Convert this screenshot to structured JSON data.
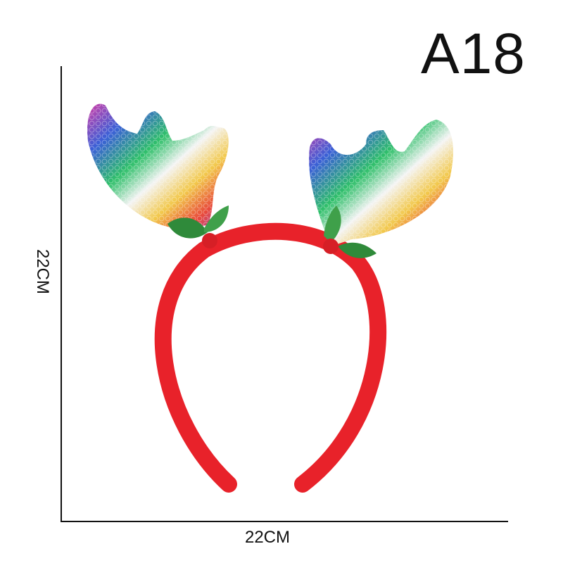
{
  "product": {
    "code": "A18",
    "height_label": "22CM",
    "width_label": "22CM",
    "band_color": "#e8222a",
    "antler_colors": [
      "#d43fa8",
      "#3a5fd6",
      "#2fbf6a",
      "#f2c84b",
      "#e84a3a",
      "#9b47c9"
    ],
    "leaf_color": "#2f8a3a"
  }
}
